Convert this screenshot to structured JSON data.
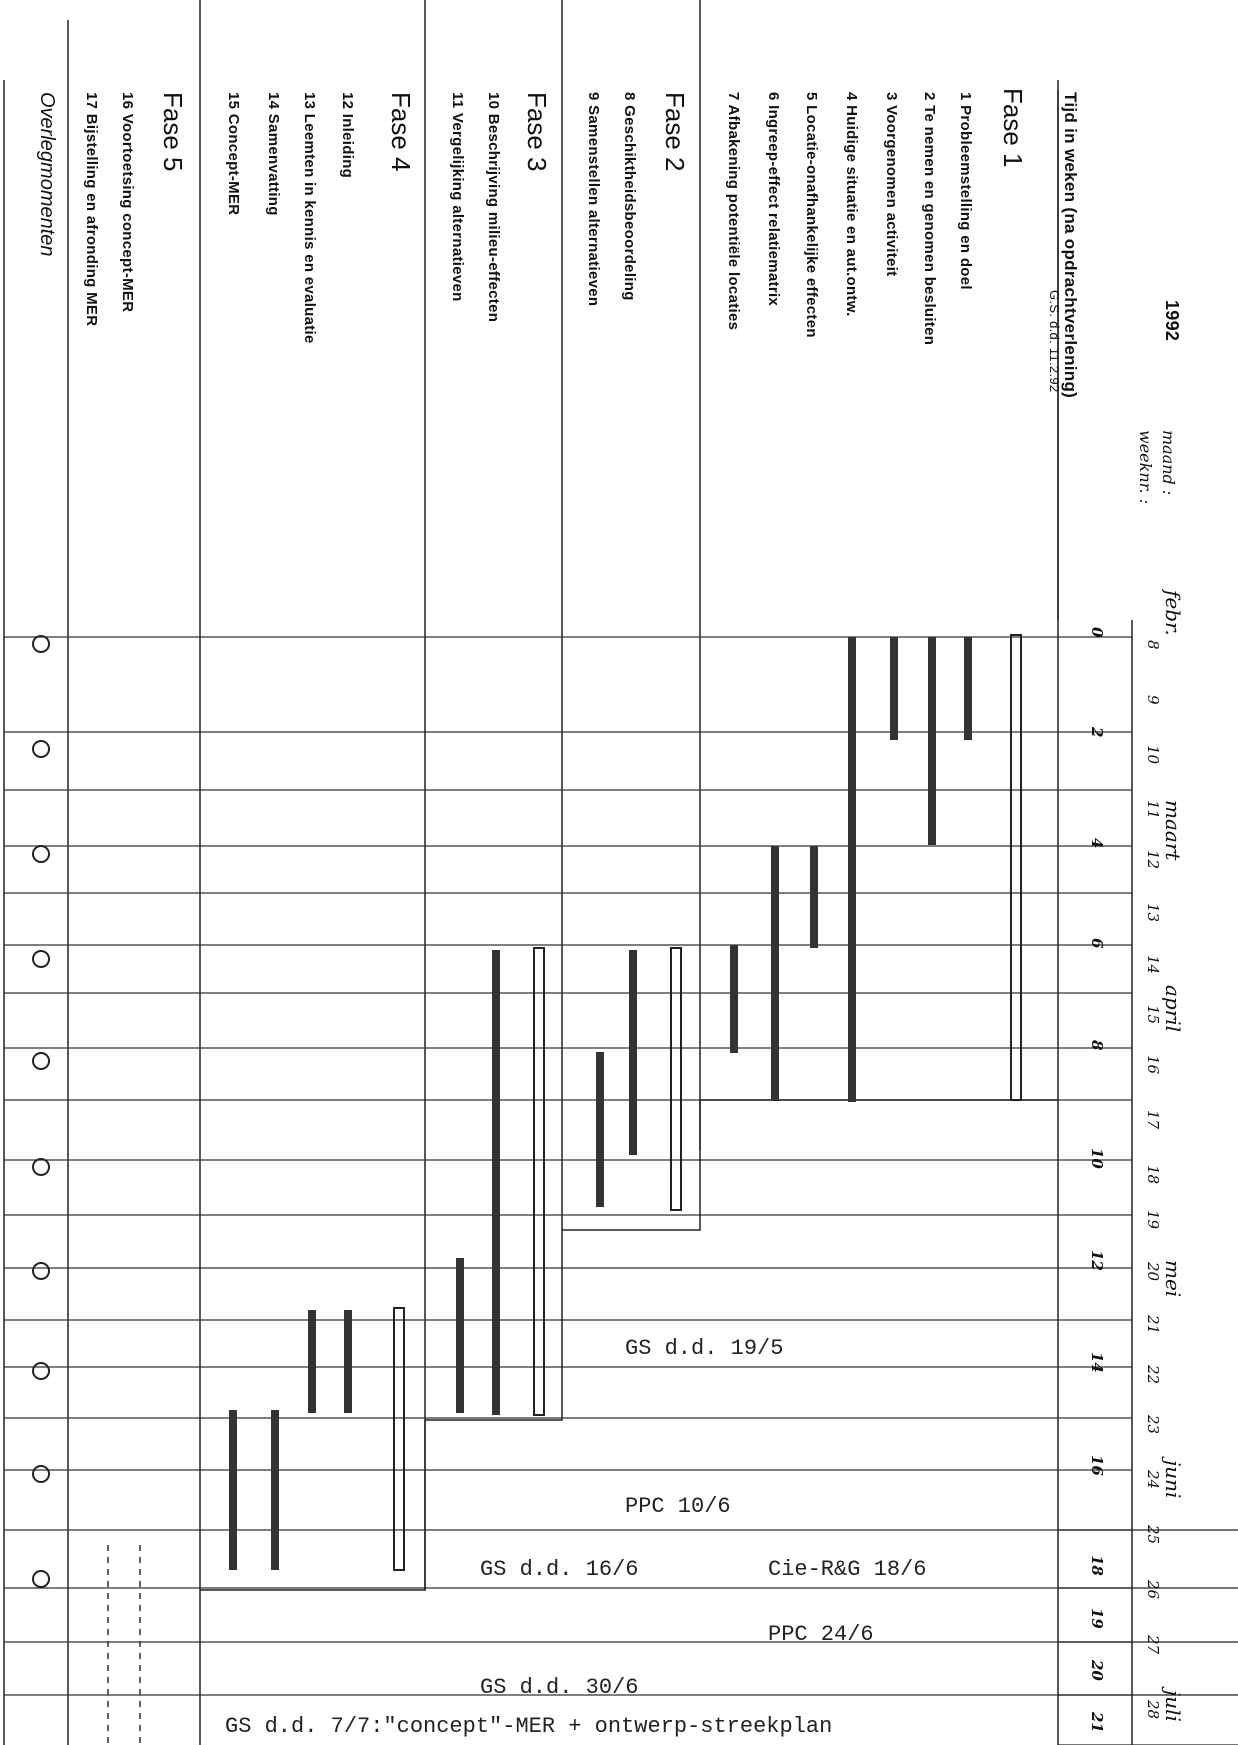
{
  "header": {
    "year": "1992",
    "month_label": "maand :",
    "week_label": "weeknr. :",
    "time_label": "Tijd in weken (na opdrachtverlening)",
    "gs_note": "G.S. d.d. 11.2.92",
    "months": [
      "febr.",
      "maart",
      "april",
      "mei",
      "juni",
      "juli"
    ],
    "week_numbers": [
      "8",
      "9",
      "10",
      "11",
      "12",
      "13",
      "14",
      "15",
      "16",
      "17",
      "18",
      "19",
      "20",
      "21",
      "22",
      "23",
      "24",
      "25",
      "26",
      "27",
      "28"
    ],
    "time_ticks": [
      "0",
      "2",
      "4",
      "6",
      "8",
      "10",
      "12",
      "14",
      "16",
      "18",
      "19",
      "20",
      "21"
    ]
  },
  "phases": [
    {
      "title": "Fase 1",
      "items": [
        "1  Probleemstelling en doel",
        "2  Te nemen en genomen besluiten",
        "3  Voorgenomen activiteit",
        "4  Huidige situatie en aut.ontw.",
        "5  Locatie-onafhankelijke effecten",
        "6  Ingreep-effect relatiematrix",
        "7  Afbakening potentiële locaties"
      ]
    },
    {
      "title": "Fase 2",
      "items": [
        "8  Geschiktheidsbeoordeling",
        "9  Samenstellen alternatieven"
      ]
    },
    {
      "title": "Fase 3",
      "items": [
        "10 Beschrijving milieu-effecten",
        "11 Vergelijking alternatieven"
      ]
    },
    {
      "title": "Fase 4",
      "items": [
        "12 Inleiding",
        "13 Leemten in kennis en evaluatie",
        "14 Samenvatting",
        "15 Concept-MER"
      ]
    },
    {
      "title": "Fase 5",
      "items": [
        "16 Voortoetsing concept-MER",
        "17 Bijstelling en afronding MER"
      ]
    }
  ],
  "overleg_label": "Overlegmomenten",
  "meetings": [
    "GS d.d. 19/5",
    "PPC 10/6",
    "GS d.d. 16/6",
    "Cie-R&G 18/6",
    "PPC 24/6",
    "GS d.d. 30/6",
    "GS d.d. 7/7:\"concept\"-MER + ontwerp-streekplan"
  ]
}
